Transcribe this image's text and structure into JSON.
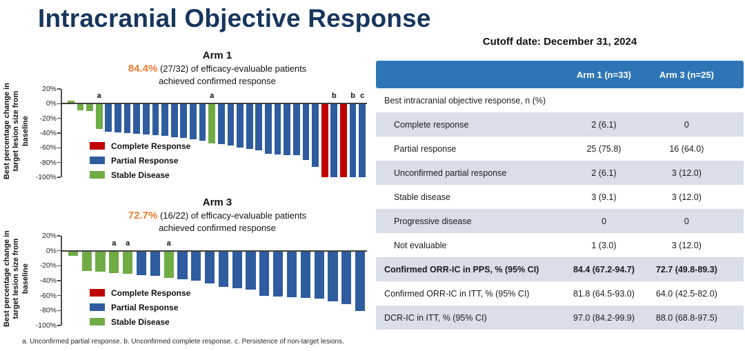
{
  "slide_title": "Intracranial Objective Response",
  "cutoff_label": "Cutoff date: December 31, 2024",
  "footnote": "a. Unconfirmed partial response. b. Unconfirmed complete response. c. Persistence of non-target lesions.",
  "colors": {
    "title_navy": "#17365D",
    "accent_orange": "#ED7D31",
    "bar_blue": "#2E5C9E",
    "bar_green": "#6FAC46",
    "bar_red": "#C00000",
    "table_header_blue": "#2E75B6",
    "table_row_gray": "#D9DEE8",
    "axis_dark": "#3F3F3F"
  },
  "y_axis": {
    "title_lines": [
      "Best percentage change in",
      "target lesion size from",
      "baseline"
    ],
    "ticks": [
      {
        "value": 20,
        "label": "20%"
      },
      {
        "value": 0,
        "label": "0%"
      },
      {
        "value": -20,
        "label": "-20%"
      },
      {
        "value": -40,
        "label": "-40%"
      },
      {
        "value": -60,
        "label": "-60%"
      },
      {
        "value": -80,
        "label": "-80%"
      },
      {
        "value": -100,
        "label": "-100%"
      }
    ]
  },
  "legend": [
    {
      "key": "cr",
      "label": "Complete Response"
    },
    {
      "key": "pr",
      "label": "Partial Response"
    },
    {
      "key": "sd",
      "label": "Stable Disease"
    }
  ],
  "chart_data": [
    {
      "type": "bar",
      "title": "Arm 1",
      "highlight_pct": "84.4%",
      "subtitle_line1_rest": " (27/32) of efficacy-evaluable patients",
      "subtitle_line2": "achieved confirmed response",
      "ylabel": "Best percentage change in target lesion size from baseline",
      "ylim": [
        -100,
        20
      ],
      "legend_position": "lower-left-inside",
      "grid": false,
      "bars": [
        {
          "value": 4,
          "type": "sd",
          "note": ""
        },
        {
          "value": -9,
          "type": "sd",
          "note": ""
        },
        {
          "value": -10,
          "type": "sd",
          "note": ""
        },
        {
          "value": -34,
          "type": "sd",
          "note": "a"
        },
        {
          "value": -38,
          "type": "pr",
          "note": ""
        },
        {
          "value": -39,
          "type": "pr",
          "note": ""
        },
        {
          "value": -40,
          "type": "pr",
          "note": ""
        },
        {
          "value": -41,
          "type": "pr",
          "note": ""
        },
        {
          "value": -42,
          "type": "pr",
          "note": ""
        },
        {
          "value": -43,
          "type": "pr",
          "note": ""
        },
        {
          "value": -44,
          "type": "pr",
          "note": ""
        },
        {
          "value": -46,
          "type": "pr",
          "note": ""
        },
        {
          "value": -47,
          "type": "pr",
          "note": ""
        },
        {
          "value": -48,
          "type": "pr",
          "note": ""
        },
        {
          "value": -50,
          "type": "pr",
          "note": ""
        },
        {
          "value": -54,
          "type": "sd",
          "note": "a"
        },
        {
          "value": -55,
          "type": "pr",
          "note": ""
        },
        {
          "value": -57,
          "type": "pr",
          "note": ""
        },
        {
          "value": -60,
          "type": "pr",
          "note": ""
        },
        {
          "value": -62,
          "type": "pr",
          "note": ""
        },
        {
          "value": -63,
          "type": "pr",
          "note": ""
        },
        {
          "value": -68,
          "type": "pr",
          "note": ""
        },
        {
          "value": -69,
          "type": "pr",
          "note": ""
        },
        {
          "value": -70,
          "type": "pr",
          "note": ""
        },
        {
          "value": -70,
          "type": "pr",
          "note": ""
        },
        {
          "value": -77,
          "type": "pr",
          "note": ""
        },
        {
          "value": -86,
          "type": "pr",
          "note": ""
        },
        {
          "value": -100,
          "type": "cr",
          "note": ""
        },
        {
          "value": -100,
          "type": "pr",
          "note": "b"
        },
        {
          "value": -100,
          "type": "cr",
          "note": ""
        },
        {
          "value": -100,
          "type": "pr",
          "note": "b"
        },
        {
          "value": -100,
          "type": "pr",
          "note": "c"
        }
      ]
    },
    {
      "type": "bar",
      "title": "Arm 3",
      "highlight_pct": "72.7%",
      "subtitle_line1_rest": " (16/22) of efficacy-evaluable patients",
      "subtitle_line2": "achieved confirmed response",
      "ylabel": "Best percentage change in target lesion size from baseline",
      "ylim": [
        -100,
        20
      ],
      "legend_position": "lower-left-inside",
      "grid": false,
      "bars": [
        {
          "value": -7,
          "type": "sd",
          "note": ""
        },
        {
          "value": -27,
          "type": "sd",
          "note": ""
        },
        {
          "value": -28,
          "type": "sd",
          "note": ""
        },
        {
          "value": -30,
          "type": "sd",
          "note": "a"
        },
        {
          "value": -31,
          "type": "sd",
          "note": "a"
        },
        {
          "value": -33,
          "type": "pr",
          "note": ""
        },
        {
          "value": -34,
          "type": "pr",
          "note": ""
        },
        {
          "value": -36,
          "type": "sd",
          "note": "a"
        },
        {
          "value": -38,
          "type": "pr",
          "note": ""
        },
        {
          "value": -40,
          "type": "pr",
          "note": ""
        },
        {
          "value": -44,
          "type": "pr",
          "note": ""
        },
        {
          "value": -48,
          "type": "pr",
          "note": ""
        },
        {
          "value": -50,
          "type": "pr",
          "note": ""
        },
        {
          "value": -52,
          "type": "pr",
          "note": ""
        },
        {
          "value": -60,
          "type": "pr",
          "note": ""
        },
        {
          "value": -61,
          "type": "pr",
          "note": ""
        },
        {
          "value": -62,
          "type": "pr",
          "note": ""
        },
        {
          "value": -63,
          "type": "pr",
          "note": ""
        },
        {
          "value": -64,
          "type": "pr",
          "note": ""
        },
        {
          "value": -68,
          "type": "pr",
          "note": ""
        },
        {
          "value": -71,
          "type": "pr",
          "note": ""
        },
        {
          "value": -81,
          "type": "pr",
          "note": ""
        }
      ]
    }
  ],
  "table": {
    "columns": [
      "",
      "Arm 1 (n=33)",
      "Arm 3 (n=25)"
    ],
    "rows": [
      {
        "label": "Best intracranial objective response, n (%)",
        "arm1": "",
        "arm3": "",
        "shade": false,
        "bold": false,
        "indent": false
      },
      {
        "label": "Complete response",
        "arm1": "2 (6.1)",
        "arm3": "0",
        "shade": true,
        "bold": false,
        "indent": true
      },
      {
        "label": "Partial response",
        "arm1": "25 (75.8)",
        "arm3": "16 (64.0)",
        "shade": false,
        "bold": false,
        "indent": true
      },
      {
        "label": "Unconfirmed partial response",
        "arm1": "2 (6.1)",
        "arm3": "3 (12.0)",
        "shade": true,
        "bold": false,
        "indent": true
      },
      {
        "label": "Stable disease",
        "arm1": "3 (9.1)",
        "arm3": "3 (12.0)",
        "shade": false,
        "bold": false,
        "indent": true
      },
      {
        "label": "Progressive disease",
        "arm1": "0",
        "arm3": "0",
        "shade": true,
        "bold": false,
        "indent": true
      },
      {
        "label": "Not evaluable",
        "arm1": "1 (3.0)",
        "arm3": "3 (12.0)",
        "shade": false,
        "bold": false,
        "indent": true
      },
      {
        "label": "Confirmed ORR-IC in PPS, % (95% CI)",
        "arm1": "84.4 (67.2-94.7)",
        "arm3": "72.7 (49.8-89.3)",
        "shade": true,
        "bold": true,
        "indent": false
      },
      {
        "label": "Confirmed ORR-IC in ITT, % (95% CI)",
        "arm1": "81.8 (64.5-93.0)",
        "arm3": "64.0 (42.5-82.0)",
        "shade": false,
        "bold": false,
        "indent": false
      },
      {
        "label": "DCR-IC in ITT, % (95% CI)",
        "arm1": "97.0 (84.2-99.9)",
        "arm3": "88.0 (68.8-97.5)",
        "shade": true,
        "bold": false,
        "indent": false
      }
    ]
  }
}
